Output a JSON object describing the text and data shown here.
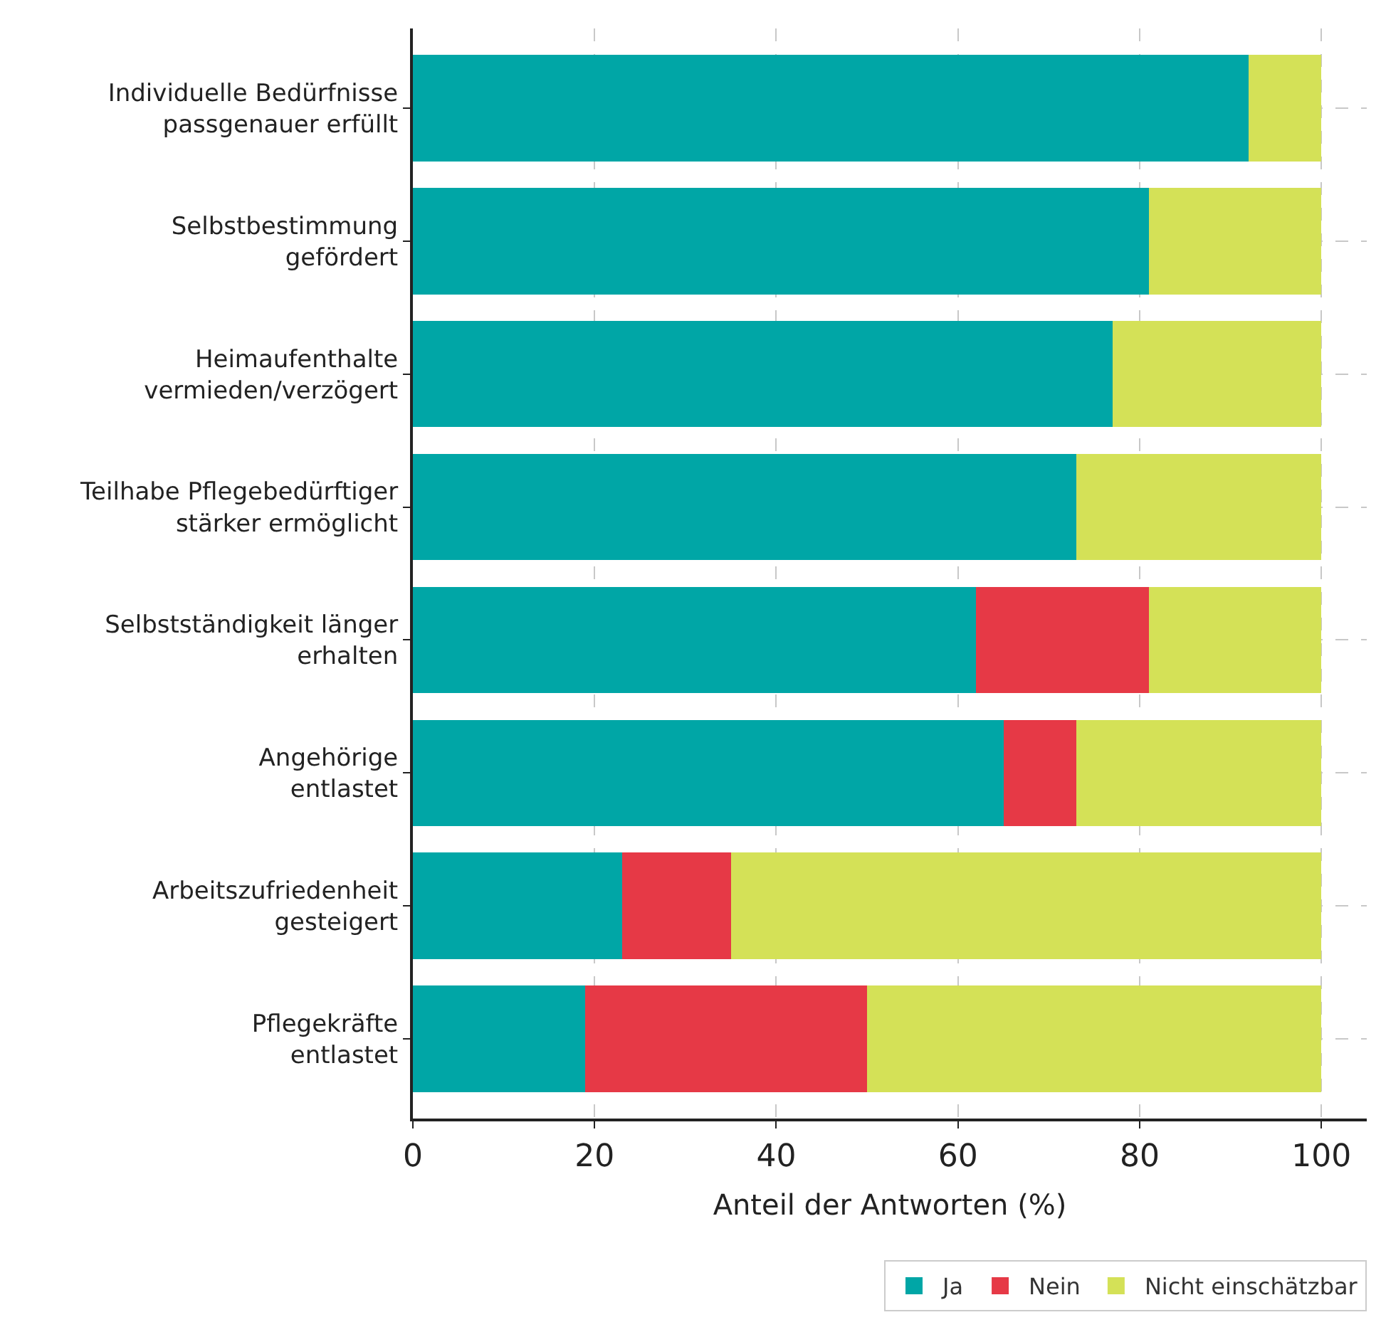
{
  "chart_data": {
    "type": "bar",
    "orientation": "horizontal",
    "stacked": true,
    "xlabel": "Anteil der Antworten (%)",
    "categories": [
      "Individuelle Bedürfnisse\npassgenauer erfüllt",
      "Selbstbestimmung\ngefördert",
      "Heimaufenthalte\nvermieden/verzögert",
      "Teilhabe Pflegebedürftiger\nstärker ermöglicht",
      "Selbstständigkeit länger\nerhalten",
      "Angehörige\nentlastet",
      "Arbeitszufriedenheit\ngesteigert",
      "Pflegekräfte\nentlastet"
    ],
    "series": [
      {
        "name": "Ja",
        "color": "#00a6a6",
        "values": [
          92,
          81,
          77,
          73,
          62,
          65,
          23,
          19
        ]
      },
      {
        "name": "Nein",
        "color": "#e63946",
        "values": [
          0,
          0,
          0,
          0,
          19,
          8,
          12,
          31
        ]
      },
      {
        "name": "Nicht einschätzbar",
        "color": "#d4e157",
        "values": [
          8,
          19,
          23,
          27,
          19,
          27,
          65,
          50
        ]
      }
    ],
    "xlim": [
      0,
      105
    ],
    "xticks": [
      0,
      20,
      40,
      60,
      80,
      100
    ],
    "grid": true,
    "legend": "bottom right"
  }
}
